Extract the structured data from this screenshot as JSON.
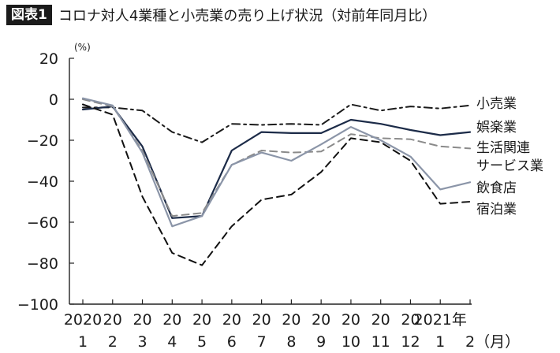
{
  "figure": {
    "badge": "図表1",
    "title": "コロナ対人4業種と小売業の売り上げ状況（対前年同月比）"
  },
  "chart_data": {
    "type": "line",
    "unit_label": "(%)",
    "ylim": [
      -100,
      20
    ],
    "yticks": [
      20,
      0,
      -20,
      -40,
      -60,
      -80,
      -100
    ],
    "ytick_labels": [
      "20",
      "0",
      "−20",
      "−40",
      "−60",
      "−80",
      "−100"
    ],
    "categories_top": [
      "2020",
      "20",
      "20",
      "20",
      "20",
      "20",
      "20",
      "20",
      "20",
      "20",
      "20",
      "20",
      "2021年",
      ""
    ],
    "categories_bottom": [
      "1",
      "2",
      "3",
      "4",
      "5",
      "6",
      "7",
      "8",
      "9",
      "10",
      "11",
      "12",
      "1",
      "2（月）"
    ],
    "x": [
      "2020-01",
      "2020-02",
      "2020-03",
      "2020-04",
      "2020-05",
      "2020-06",
      "2020-07",
      "2020-08",
      "2020-09",
      "2020-10",
      "2020-11",
      "2020-12",
      "2021-01",
      "2021-02"
    ],
    "grid": false,
    "series": [
      {
        "name": "小売業",
        "style": "dashdot",
        "color": "#1a1a1a",
        "values": [
          -4,
          -4,
          -5.5,
          -16,
          -21,
          -12,
          -12.5,
          -12,
          -12.5,
          -2.5,
          -5.5,
          -3.5,
          -4.5,
          -3
        ]
      },
      {
        "name": "娯楽業",
        "style": "solid",
        "color": "#1c2b48",
        "values": [
          -5,
          -3.5,
          -23,
          -58,
          -57,
          -25,
          -16,
          -16.5,
          -16.5,
          -10,
          -12,
          -15,
          -17.5,
          -16
        ]
      },
      {
        "name": "生活関連サービス業",
        "style": "dashed",
        "color": "#8a8a8a",
        "values": [
          0,
          -3.5,
          -25,
          -57,
          -55.5,
          -32,
          -25,
          -26,
          -25.5,
          -17,
          -19,
          -19.5,
          -23,
          -24
        ]
      },
      {
        "name": "飲食店",
        "style": "solid",
        "color": "#8b95a8",
        "values": [
          0.5,
          -3,
          -26,
          -62,
          -57,
          -32,
          -26,
          -30,
          -22,
          -13.5,
          -20,
          -28,
          -44,
          -40.5
        ]
      },
      {
        "name": "宿泊業",
        "style": "dashed",
        "color": "#111111",
        "values": [
          -2.5,
          -7.5,
          -47.5,
          -75,
          -81,
          -62,
          -49,
          -46.5,
          -35.5,
          -19,
          -21,
          -30,
          -51,
          -50
        ]
      }
    ]
  }
}
